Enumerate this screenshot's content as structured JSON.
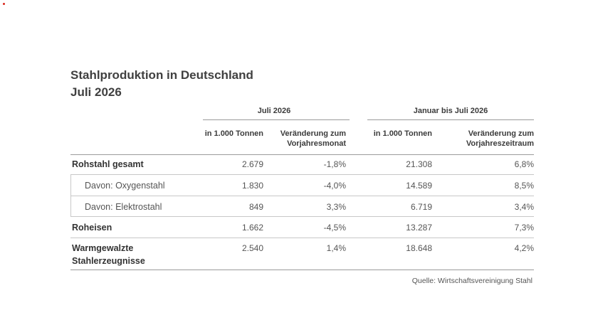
{
  "title": "Stahlproduktion in Deutschland",
  "subtitle": "Juli 2026",
  "groups": [
    "Juli 2026",
    "Januar bis Juli 2026"
  ],
  "columns": {
    "c1": "in 1.000 Tonnen",
    "c2a": "Veränderung zum",
    "c2b": "Vorjahresmonat",
    "c3": "in 1.000 Tonnen",
    "c4a": "Veränderung zum",
    "c4b": "Vorjahreszeitraum"
  },
  "rows": [
    {
      "label": "Rohstahl gesamt",
      "v1": "2.679",
      "v2": "-1,8%",
      "v3": "21.308",
      "v4": "6,8%"
    },
    {
      "label": "Davon: Oxygenstahl",
      "v1": "1.830",
      "v2": "-4,0%",
      "v3": "14.589",
      "v4": "8,5%"
    },
    {
      "label": "Davon: Elektrostahl",
      "v1": "849",
      "v2": "3,3%",
      "v3": "6.719",
      "v4": "3,4%"
    },
    {
      "label": "Roheisen",
      "v1": "1.662",
      "v2": "-4,5%",
      "v3": "13.287",
      "v4": "7,3%"
    },
    {
      "label_line1": "Warmgewalzte",
      "label_line2": "Stahlerzeugnisse",
      "v1": "2.540",
      "v2": "1,4%",
      "v3": "18.648",
      "v4": "4,2%"
    }
  ],
  "source": "Quelle: Wirtschaftsvereinigung Stahl"
}
